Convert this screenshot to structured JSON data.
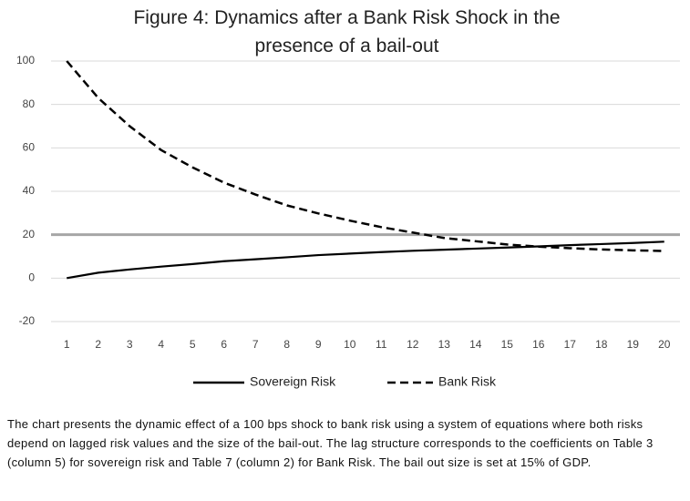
{
  "chart_data": {
    "type": "line",
    "title": "Figure 4: Dynamics after a Bank Risk Shock in the presence of a bail-out",
    "categories": [
      1,
      2,
      3,
      4,
      5,
      6,
      7,
      8,
      9,
      10,
      11,
      12,
      13,
      14,
      15,
      16,
      17,
      18,
      19,
      20
    ],
    "series": [
      {
        "name": "Sovereign Risk",
        "color": "#000000",
        "dash": false,
        "values": [
          0,
          2.5,
          4,
          5.3,
          6.5,
          7.8,
          8.7,
          9.6,
          10.6,
          11.3,
          12,
          12.6,
          13.1,
          13.6,
          14.1,
          14.6,
          15.2,
          15.7,
          16.2,
          16.8
        ]
      },
      {
        "name": "Bank Risk",
        "color": "#000000",
        "dash": true,
        "values": [
          100,
          83,
          70,
          59,
          51,
          44,
          38.5,
          33.5,
          29.8,
          26.5,
          23.5,
          21,
          18.5,
          17,
          15.5,
          14.5,
          13.8,
          13.2,
          12.8,
          12.5
        ]
      }
    ],
    "reference_line": {
      "value": 20,
      "color": "#a6a6a6"
    },
    "ylim": [
      -20,
      100
    ],
    "yticks": [
      -20,
      0,
      20,
      40,
      60,
      80,
      100
    ],
    "grid": true,
    "legend": "bottom",
    "caption": "The chart presents the dynamic effect of a 100 bps shock to bank risk using a system of equations where both risks depend on lagged risk values and the size of the bail-out. The lag structure corresponds to the coefficients on Table 3 (column 5) for sovereign risk and Table 7 (column 2) for Bank Risk. The bail out size is set at 15% of GDP."
  }
}
